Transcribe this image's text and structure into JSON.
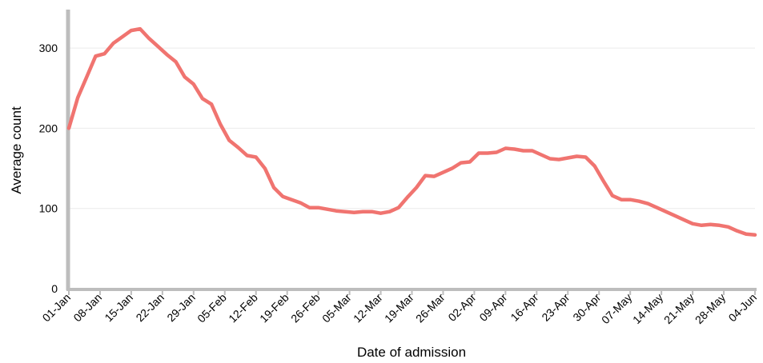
{
  "chart_data": {
    "type": "line",
    "title": "",
    "xlabel": "Date of admission",
    "ylabel": "Average count",
    "ylim": [
      0,
      350
    ],
    "yticks": [
      0,
      100,
      200,
      300
    ],
    "x_range": [
      "2021-01-01",
      "2021-06-04"
    ],
    "x_ticks": [
      {
        "date": "2021-01-01",
        "label": "01-Jan"
      },
      {
        "date": "2021-01-08",
        "label": "08-Jan"
      },
      {
        "date": "2021-01-15",
        "label": "15-Jan"
      },
      {
        "date": "2021-01-22",
        "label": "22-Jan"
      },
      {
        "date": "2021-01-29",
        "label": "29-Jan"
      },
      {
        "date": "2021-02-05",
        "label": "05-Feb"
      },
      {
        "date": "2021-02-12",
        "label": "12-Feb"
      },
      {
        "date": "2021-02-19",
        "label": "19-Feb"
      },
      {
        "date": "2021-02-26",
        "label": "26-Feb"
      },
      {
        "date": "2021-03-05",
        "label": "05-Mar"
      },
      {
        "date": "2021-03-12",
        "label": "12-Mar"
      },
      {
        "date": "2021-03-19",
        "label": "19-Mar"
      },
      {
        "date": "2021-03-26",
        "label": "26-Mar"
      },
      {
        "date": "2021-04-02",
        "label": "02-Apr"
      },
      {
        "date": "2021-04-09",
        "label": "09-Apr"
      },
      {
        "date": "2021-04-16",
        "label": "16-Apr"
      },
      {
        "date": "2021-04-23",
        "label": "23-Apr"
      },
      {
        "date": "2021-04-30",
        "label": "30-Apr"
      },
      {
        "date": "2021-05-07",
        "label": "07-May"
      },
      {
        "date": "2021-05-14",
        "label": "14-May"
      },
      {
        "date": "2021-05-21",
        "label": "21-May"
      },
      {
        "date": "2021-05-28",
        "label": "28-May"
      },
      {
        "date": "2021-06-04",
        "label": "04-Jun"
      }
    ],
    "grid": "horizontal",
    "line_color": "#f07470",
    "series": [
      {
        "x": [
          "2021-01-01",
          "2021-01-03",
          "2021-01-05",
          "2021-01-07",
          "2021-01-09",
          "2021-01-11",
          "2021-01-13",
          "2021-01-15",
          "2021-01-17",
          "2021-01-19",
          "2021-01-21",
          "2021-01-23",
          "2021-01-25",
          "2021-01-27",
          "2021-01-29",
          "2021-01-31",
          "2021-02-02",
          "2021-02-04",
          "2021-02-06",
          "2021-02-08",
          "2021-02-10",
          "2021-02-12",
          "2021-02-14",
          "2021-02-16",
          "2021-02-18",
          "2021-02-20",
          "2021-02-22",
          "2021-02-24",
          "2021-02-26",
          "2021-02-28",
          "2021-03-02",
          "2021-03-04",
          "2021-03-06",
          "2021-03-08",
          "2021-03-10",
          "2021-03-12",
          "2021-03-14",
          "2021-03-16",
          "2021-03-18",
          "2021-03-20",
          "2021-03-22",
          "2021-03-24",
          "2021-03-26",
          "2021-03-28",
          "2021-03-30",
          "2021-04-01",
          "2021-04-03",
          "2021-04-05",
          "2021-04-07",
          "2021-04-09",
          "2021-04-11",
          "2021-04-13",
          "2021-04-15",
          "2021-04-17",
          "2021-04-19",
          "2021-04-21",
          "2021-04-23",
          "2021-04-25",
          "2021-04-27",
          "2021-04-29",
          "2021-05-01",
          "2021-05-03",
          "2021-05-05",
          "2021-05-07",
          "2021-05-09",
          "2021-05-11",
          "2021-05-13",
          "2021-05-15",
          "2021-05-17",
          "2021-05-19",
          "2021-05-21",
          "2021-05-23",
          "2021-05-25",
          "2021-05-27",
          "2021-05-29",
          "2021-05-31",
          "2021-06-02",
          "2021-06-04"
        ],
        "y": [
          200,
          238,
          264,
          290,
          293,
          306,
          314,
          322,
          324,
          312,
          302,
          292,
          283,
          264,
          255,
          237,
          230,
          205,
          185,
          176,
          166,
          164,
          150,
          126,
          115,
          111,
          107,
          101,
          101,
          99,
          97,
          96,
          95,
          96,
          96,
          94,
          96,
          101,
          114,
          126,
          141,
          140,
          145,
          150,
          157,
          158,
          169,
          169,
          170,
          175,
          174,
          172,
          172,
          167,
          162,
          161,
          163,
          165,
          164,
          153,
          134,
          116,
          111,
          111,
          109,
          106,
          101,
          96,
          91,
          86,
          81,
          79,
          80,
          79,
          77,
          72,
          68,
          67
        ]
      }
    ]
  }
}
